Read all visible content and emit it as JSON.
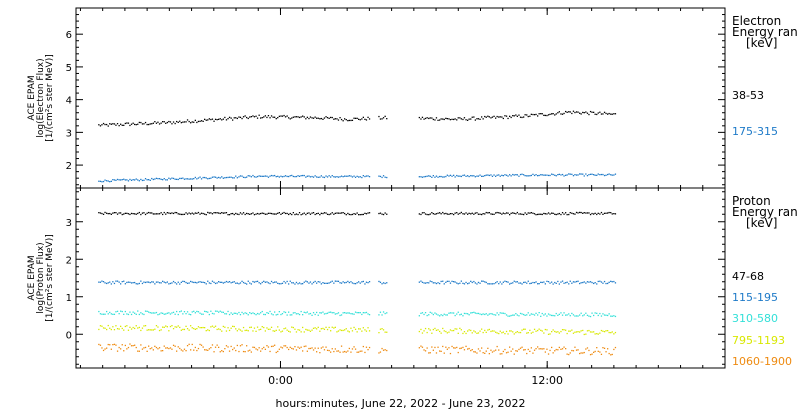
{
  "chart_data": [
    {
      "type": "scatter",
      "panel": "electron",
      "ylabel": [
        "ACE EPAM",
        "log(Electron Flux)",
        "[1/(cm²s ster MeV)]"
      ],
      "ylim": [
        1.3,
        6.8
      ],
      "yticks": [
        "2",
        "3",
        "4",
        "5",
        "6"
      ],
      "legend_title": [
        "Electron",
        "Energy ran",
        "[keV]"
      ],
      "gaps": [
        [
          4.0,
          4.4
        ],
        [
          4.8,
          6.2
        ]
      ],
      "series": [
        {
          "name": "38-53",
          "color": "#000000",
          "base": 3.38,
          "trend": [
            [
              -8.0,
              3.22
            ],
            [
              -5.0,
              3.3
            ],
            [
              -1.0,
              3.48
            ],
            [
              1.5,
              3.45
            ],
            [
              3.0,
              3.4
            ],
            [
              5.0,
              3.45
            ],
            [
              8.0,
              3.4
            ],
            [
              11.0,
              3.5
            ],
            [
              13.0,
              3.62
            ],
            [
              15.0,
              3.55
            ]
          ],
          "noise": 0.05
        },
        {
          "name": "175-315",
          "color": "#1E7AC8",
          "trend": [
            [
              -8.0,
              1.52
            ],
            [
              -5.0,
              1.58
            ],
            [
              -1.0,
              1.66
            ],
            [
              3.0,
              1.65
            ],
            [
              6.0,
              1.65
            ],
            [
              12.0,
              1.7
            ],
            [
              15.0,
              1.7
            ]
          ],
          "noise": 0.03
        }
      ]
    },
    {
      "type": "scatter",
      "panel": "proton",
      "ylabel": [
        "ACE EPAM",
        "log(Proton Flux)",
        "[1/(cm²s ster MeV)]"
      ],
      "ylim": [
        -0.9,
        3.9
      ],
      "yticks": [
        "0",
        "1",
        "2",
        "3"
      ],
      "legend_title": [
        "Proton",
        "Energy ran",
        "[keV]"
      ],
      "gaps": [
        [
          4.0,
          4.4
        ],
        [
          4.8,
          6.2
        ]
      ],
      "series": [
        {
          "name": "47-68",
          "color": "#000000",
          "trend": [
            [
              -8.0,
              3.22
            ],
            [
              15.0,
              3.22
            ]
          ],
          "noise": 0.03
        },
        {
          "name": "115-195",
          "color": "#1E7AC8",
          "trend": [
            [
              -8.0,
              1.38
            ],
            [
              15.0,
              1.38
            ]
          ],
          "noise": 0.04
        },
        {
          "name": "310-580",
          "color": "#33E0D8",
          "trend": [
            [
              -8.0,
              0.58
            ],
            [
              15.0,
              0.52
            ]
          ],
          "noise": 0.05
        },
        {
          "name": "795-1193",
          "color": "#D8E800",
          "trend": [
            [
              -8.0,
              0.18
            ],
            [
              15.0,
              0.05
            ]
          ],
          "noise": 0.07
        },
        {
          "name": "1060-1900",
          "color": "#EE8A10",
          "trend": [
            [
              -8.0,
              -0.35
            ],
            [
              15.0,
              -0.45
            ]
          ],
          "noise": 0.1
        }
      ]
    }
  ],
  "x_axis": {
    "xlim": [
      -9.2,
      20.0
    ],
    "ticks": [
      {
        "value": 0,
        "label": "0:00"
      },
      {
        "value": 12,
        "label": "12:00"
      }
    ],
    "minor_step": 1,
    "label": "hours:minutes, June 22, 2022 - June 23, 2022",
    "data_end": 15.1
  }
}
